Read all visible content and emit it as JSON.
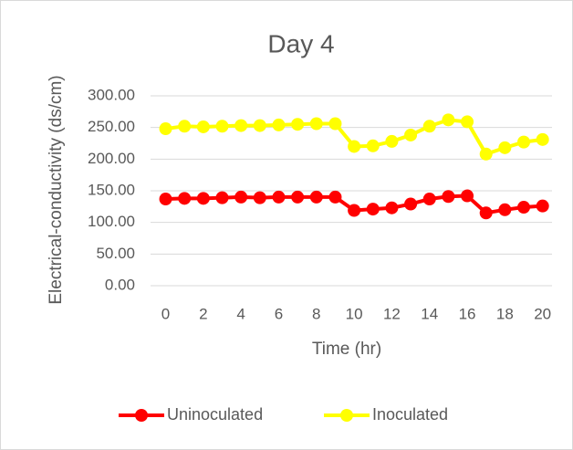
{
  "chart_data": {
    "type": "line",
    "title": "Day 4",
    "x_label": "Time (hr)",
    "y_label": "Electrical-conductivity (ds/cm)",
    "x": [
      0,
      1,
      2,
      3,
      4,
      5,
      6,
      7,
      8,
      9,
      10,
      11,
      12,
      13,
      14,
      15,
      16,
      17,
      18,
      19,
      20
    ],
    "xlim": [
      -0.8,
      20.5
    ],
    "xticks": [
      0,
      2,
      4,
      6,
      8,
      10,
      12,
      14,
      16,
      18,
      20
    ],
    "ylim": [
      0,
      300
    ],
    "yticks": [
      {
        "value": 0,
        "label": "0.00"
      },
      {
        "value": 50,
        "label": "50.00"
      },
      {
        "value": 100,
        "label": "100.00"
      },
      {
        "value": 150,
        "label": "150.00"
      },
      {
        "value": 200,
        "label": "200.00"
      },
      {
        "value": 250,
        "label": "250.00"
      },
      {
        "value": 300,
        "label": "300.00"
      }
    ],
    "grid": true,
    "legend": "bottom",
    "series": [
      {
        "name": "Uninoculated",
        "color": "#ff0000",
        "values": [
          137,
          138,
          138,
          139,
          140,
          139,
          140,
          140,
          140,
          140,
          119,
          121,
          123,
          129,
          137,
          141,
          142,
          115,
          120,
          124,
          126
        ]
      },
      {
        "name": "Inoculated",
        "color": "#ffff00",
        "values": [
          248,
          252,
          251,
          252,
          253,
          253,
          254,
          255,
          256,
          256,
          220,
          221,
          228,
          238,
          252,
          262,
          259,
          208,
          218,
          227,
          231
        ]
      }
    ]
  }
}
